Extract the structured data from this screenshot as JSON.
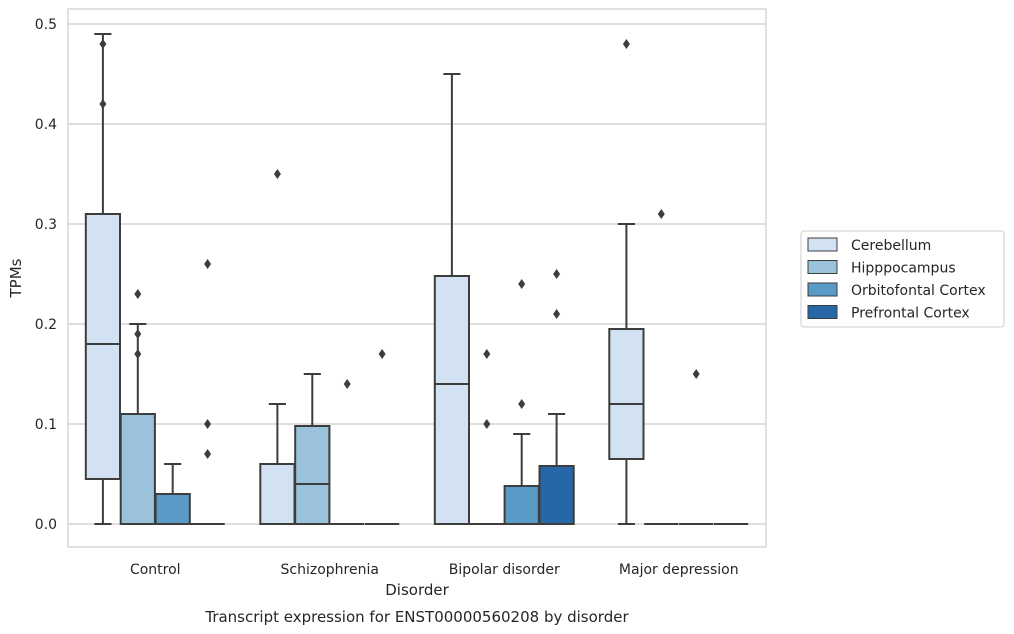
{
  "chart_data": {
    "type": "box",
    "caption": "Transcript expression for ENST00000560208 by disorder",
    "xlabel": "Disorder",
    "ylabel": "TPMs",
    "ylim": [
      -0.023,
      0.515
    ],
    "yticks": [
      0.0,
      0.1,
      0.2,
      0.3,
      0.4,
      0.5
    ],
    "ytick_labels": [
      "0.0",
      "0.1",
      "0.2",
      "0.3",
      "0.4",
      "0.5"
    ],
    "grid": "horizontal",
    "legend_position": "right",
    "categories": [
      "Control",
      "Schizophrenia",
      "Bipolar disorder",
      "Major depression"
    ],
    "series": [
      {
        "name": "Cerebellum",
        "color": "#d2e2f2",
        "boxes": [
          {
            "whisker_low": 0.0,
            "q1": 0.045,
            "median": 0.18,
            "q3": 0.31,
            "whisker_high": 0.49,
            "outliers": [
              0.48,
              0.42
            ]
          },
          {
            "whisker_low": 0.0,
            "q1": 0.0,
            "median": 0.0,
            "q3": 0.06,
            "whisker_high": 0.12,
            "outliers": [
              0.35
            ]
          },
          {
            "whisker_low": 0.0,
            "q1": 0.0,
            "median": 0.14,
            "q3": 0.248,
            "whisker_high": 0.45,
            "outliers": []
          },
          {
            "whisker_low": 0.0,
            "q1": 0.065,
            "median": 0.12,
            "q3": 0.195,
            "whisker_high": 0.3,
            "outliers": [
              0.48
            ]
          }
        ]
      },
      {
        "name": "Hipppocampus",
        "color": "#9ac3db",
        "boxes": [
          {
            "whisker_low": 0.0,
            "q1": 0.0,
            "median": 0.0,
            "q3": 0.11,
            "whisker_high": 0.2,
            "outliers": [
              0.23,
              0.19,
              0.17
            ]
          },
          {
            "whisker_low": 0.0,
            "q1": 0.0,
            "median": 0.04,
            "q3": 0.098,
            "whisker_high": 0.15,
            "outliers": []
          },
          {
            "whisker_low": 0.0,
            "q1": 0.0,
            "median": 0.0,
            "q3": 0.0,
            "whisker_high": 0.0,
            "outliers": [
              0.17,
              0.1
            ]
          },
          {
            "whisker_low": 0.0,
            "q1": 0.0,
            "median": 0.0,
            "q3": 0.0,
            "whisker_high": 0.0,
            "outliers": [
              0.31
            ]
          }
        ]
      },
      {
        "name": "Orbitofontal Cortex",
        "color": "#5a9ac7",
        "boxes": [
          {
            "whisker_low": 0.0,
            "q1": 0.0,
            "median": 0.0,
            "q3": 0.03,
            "whisker_high": 0.06,
            "outliers": []
          },
          {
            "whisker_low": 0.0,
            "q1": 0.0,
            "median": 0.0,
            "q3": 0.0,
            "whisker_high": 0.0,
            "outliers": [
              0.14
            ]
          },
          {
            "whisker_low": 0.0,
            "q1": 0.0,
            "median": 0.0,
            "q3": 0.038,
            "whisker_high": 0.09,
            "outliers": [
              0.24,
              0.12
            ]
          },
          {
            "whisker_low": 0.0,
            "q1": 0.0,
            "median": 0.0,
            "q3": 0.0,
            "whisker_high": 0.0,
            "outliers": [
              0.15
            ]
          }
        ]
      },
      {
        "name": "Prefrontal Cortex",
        "color": "#2667a8",
        "boxes": [
          {
            "whisker_low": 0.0,
            "q1": 0.0,
            "median": 0.0,
            "q3": 0.0,
            "whisker_high": 0.0,
            "outliers": [
              0.26,
              0.1,
              0.07
            ]
          },
          {
            "whisker_low": 0.0,
            "q1": 0.0,
            "median": 0.0,
            "q3": 0.0,
            "whisker_high": 0.0,
            "outliers": [
              0.17
            ]
          },
          {
            "whisker_low": 0.0,
            "q1": 0.0,
            "median": 0.0,
            "q3": 0.058,
            "whisker_high": 0.11,
            "outliers": [
              0.25,
              0.21
            ]
          },
          {
            "whisker_low": 0.0,
            "q1": 0.0,
            "median": 0.0,
            "q3": 0.0,
            "whisker_high": 0.0,
            "outliers": []
          }
        ]
      }
    ]
  }
}
